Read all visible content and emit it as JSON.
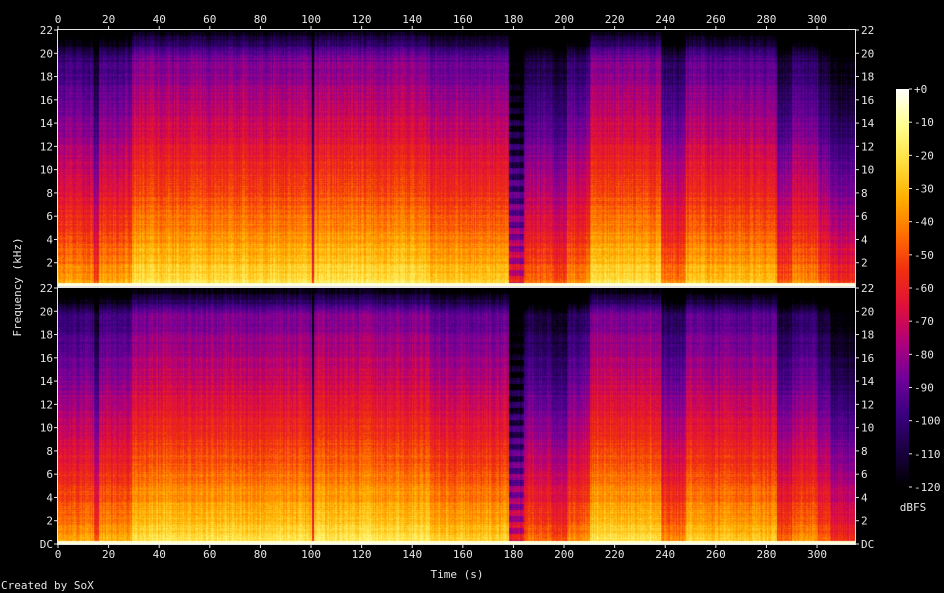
{
  "chart_data": {
    "type": "heatmap",
    "title": "",
    "xlabel": "Time (s)",
    "ylabel": "Frequency (kHz)",
    "xlim": [
      0,
      315
    ],
    "x_ticks": [
      0,
      20,
      40,
      60,
      80,
      100,
      120,
      140,
      160,
      180,
      200,
      220,
      240,
      260,
      280,
      300
    ],
    "channels": [
      {
        "y_tick_labels": [
          "2",
          "4",
          "6",
          "8",
          "10",
          "12",
          "14",
          "16",
          "18",
          "20",
          "22"
        ],
        "y_tick_values": [
          2,
          4,
          6,
          8,
          10,
          12,
          14,
          16,
          18,
          20,
          22
        ]
      },
      {
        "y_tick_labels": [
          "DC",
          "2",
          "4",
          "6",
          "8",
          "10",
          "12",
          "14",
          "16",
          "18",
          "20",
          "22"
        ],
        "y_tick_values": [
          0,
          2,
          4,
          6,
          8,
          10,
          12,
          14,
          16,
          18,
          20,
          22
        ]
      }
    ],
    "ylim": [
      0,
      22
    ],
    "colorbar": {
      "label": "dBFS",
      "tick_labels": [
        "+0",
        "-10",
        "-20",
        "-30",
        "-40",
        "-50",
        "-60",
        "-70",
        "-80",
        "-90",
        "-100",
        "-110",
        "-120"
      ],
      "tick_values": [
        0,
        -10,
        -20,
        -30,
        -40,
        -50,
        -60,
        -70,
        -80,
        -90,
        -100,
        -110,
        -120
      ],
      "range": [
        -120,
        0
      ],
      "colors": [
        "#000000",
        "#1a0040",
        "#3a0080",
        "#70009a",
        "#b0007a",
        "#e0103a",
        "#f03010",
        "#ff7000",
        "#ffb000",
        "#ffe040",
        "#ffff90",
        "#ffffff"
      ]
    },
    "grid": false,
    "sections": [
      {
        "start": 0,
        "end": 14,
        "level": 0.72
      },
      {
        "start": 14,
        "end": 16,
        "level": 0.6
      },
      {
        "start": 16,
        "end": 29,
        "level": 0.74
      },
      {
        "start": 29,
        "end": 100,
        "level": 0.84
      },
      {
        "start": 100,
        "end": 101,
        "level": 0.55
      },
      {
        "start": 101,
        "end": 147,
        "level": 0.85
      },
      {
        "start": 147,
        "end": 178,
        "level": 0.8
      },
      {
        "start": 178,
        "end": 184,
        "level": 0.52
      },
      {
        "start": 184,
        "end": 195,
        "level": 0.65
      },
      {
        "start": 195,
        "end": 201,
        "level": 0.6
      },
      {
        "start": 201,
        "end": 210,
        "level": 0.7
      },
      {
        "start": 210,
        "end": 238,
        "level": 0.84
      },
      {
        "start": 238,
        "end": 248,
        "level": 0.68
      },
      {
        "start": 248,
        "end": 256,
        "level": 0.8
      },
      {
        "start": 256,
        "end": 284,
        "level": 0.78
      },
      {
        "start": 284,
        "end": 290,
        "level": 0.62
      },
      {
        "start": 290,
        "end": 300,
        "level": 0.7
      },
      {
        "start": 300,
        "end": 305,
        "level": 0.62
      },
      {
        "start": 305,
        "end": 315,
        "level": 0.55
      }
    ]
  },
  "footer": {
    "credit": "Created by SoX"
  }
}
